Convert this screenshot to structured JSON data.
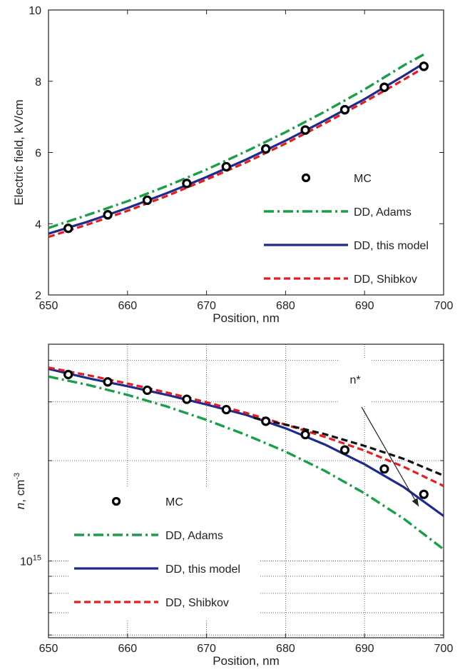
{
  "chart_data": [
    {
      "type": "line",
      "title": "",
      "xlabel": "Position, nm",
      "ylabel": "Electric field, kV/cm",
      "xlim": [
        650,
        700
      ],
      "ylim": [
        2,
        10
      ],
      "xticks": [
        650,
        660,
        670,
        680,
        690,
        700
      ],
      "yticks": [
        2,
        4,
        6,
        8,
        10
      ],
      "grid": false,
      "legend_placement": "lower-right",
      "series": [
        {
          "name": "MC",
          "style": "markers",
          "color": "#000000",
          "x": [
            652.5,
            657.5,
            662.5,
            667.5,
            672.5,
            677.5,
            682.5,
            687.5,
            692.5,
            697.5
          ],
          "y": [
            3.87,
            4.25,
            4.66,
            5.13,
            5.6,
            6.1,
            6.63,
            7.2,
            7.83,
            8.42
          ]
        },
        {
          "name": "DD, Adams",
          "style": "dashdot",
          "color": "#1a9e4a",
          "x": [
            650,
            655,
            660,
            665,
            670,
            675,
            680,
            685,
            690,
            695,
            697.5
          ],
          "y": [
            3.88,
            4.25,
            4.63,
            5.06,
            5.52,
            6.03,
            6.57,
            7.15,
            7.77,
            8.45,
            8.75
          ]
        },
        {
          "name": "DD, this model",
          "style": "solid",
          "color": "#1f2a8c",
          "x": [
            650,
            655,
            660,
            665,
            670,
            675,
            680,
            685,
            690,
            695,
            697.5
          ],
          "y": [
            3.72,
            4.06,
            4.44,
            4.86,
            5.31,
            5.8,
            6.33,
            6.9,
            7.5,
            8.16,
            8.5
          ]
        },
        {
          "name": "DD, Shibkov",
          "style": "dashed",
          "color": "#e02020",
          "x": [
            650,
            655,
            660,
            665,
            670,
            675,
            680,
            685,
            690,
            695,
            697.5
          ],
          "y": [
            3.63,
            3.98,
            4.36,
            4.78,
            5.24,
            5.72,
            6.25,
            6.82,
            7.42,
            8.05,
            8.38
          ]
        }
      ]
    },
    {
      "type": "line",
      "title": "",
      "xlabel": "Position, nm",
      "ylabel_main": "n",
      "ylabel_rest": ", cm",
      "ylabel_sup": "-3",
      "y_scale": "log",
      "ylim_exp": [
        14.77,
        15.65
      ],
      "xlim": [
        650,
        700
      ],
      "xticks": [
        650,
        660,
        670,
        680,
        690,
        700
      ],
      "ytick_label_base": "10",
      "ytick_label_exp": "15",
      "ytick_value": 1000000000000000.0,
      "grid": true,
      "legend_placement": "lower-left",
      "annotation": "n*",
      "series": [
        {
          "name": "MC",
          "style": "markers",
          "color": "#000000",
          "x": [
            652.5,
            657.5,
            662.5,
            667.5,
            672.5,
            677.5,
            682.5,
            687.5,
            692.5,
            697.5
          ],
          "y_exp": [
            15.559,
            15.537,
            15.512,
            15.485,
            15.454,
            15.419,
            15.379,
            15.333,
            15.276,
            15.2
          ]
        },
        {
          "name": "DD, Adams",
          "style": "dashdot",
          "color": "#1a9e4a",
          "x": [
            650,
            655,
            660,
            665,
            670,
            675,
            680,
            685,
            690,
            695,
            700
          ],
          "y_exp": [
            15.553,
            15.528,
            15.498,
            15.463,
            15.423,
            15.378,
            15.328,
            15.27,
            15.203,
            15.126,
            15.035
          ]
        },
        {
          "name": "DD, this model",
          "style": "solid",
          "color": "#1f2a8c",
          "x": [
            650,
            655,
            660,
            665,
            670,
            675,
            680,
            685,
            690,
            695,
            700
          ],
          "y_exp": [
            15.576,
            15.548,
            15.524,
            15.498,
            15.469,
            15.438,
            15.398,
            15.349,
            15.29,
            15.221,
            15.135
          ]
        },
        {
          "name": "DD, Shibkov",
          "style": "dashed",
          "color": "#e02020",
          "x": [
            650,
            655,
            660,
            665,
            670,
            675,
            680,
            685,
            690,
            695,
            700
          ],
          "y_exp": [
            15.58,
            15.557,
            15.532,
            15.505,
            15.476,
            15.444,
            15.409,
            15.372,
            15.331,
            15.282,
            15.225
          ]
        },
        {
          "name": "n*",
          "style": "dashed",
          "color": "#111111",
          "in_legend": false,
          "x": [
            676,
            680,
            685,
            690,
            695,
            700
          ],
          "y_exp": [
            15.429,
            15.409,
            15.38,
            15.345,
            15.306,
            15.256
          ]
        }
      ]
    }
  ]
}
